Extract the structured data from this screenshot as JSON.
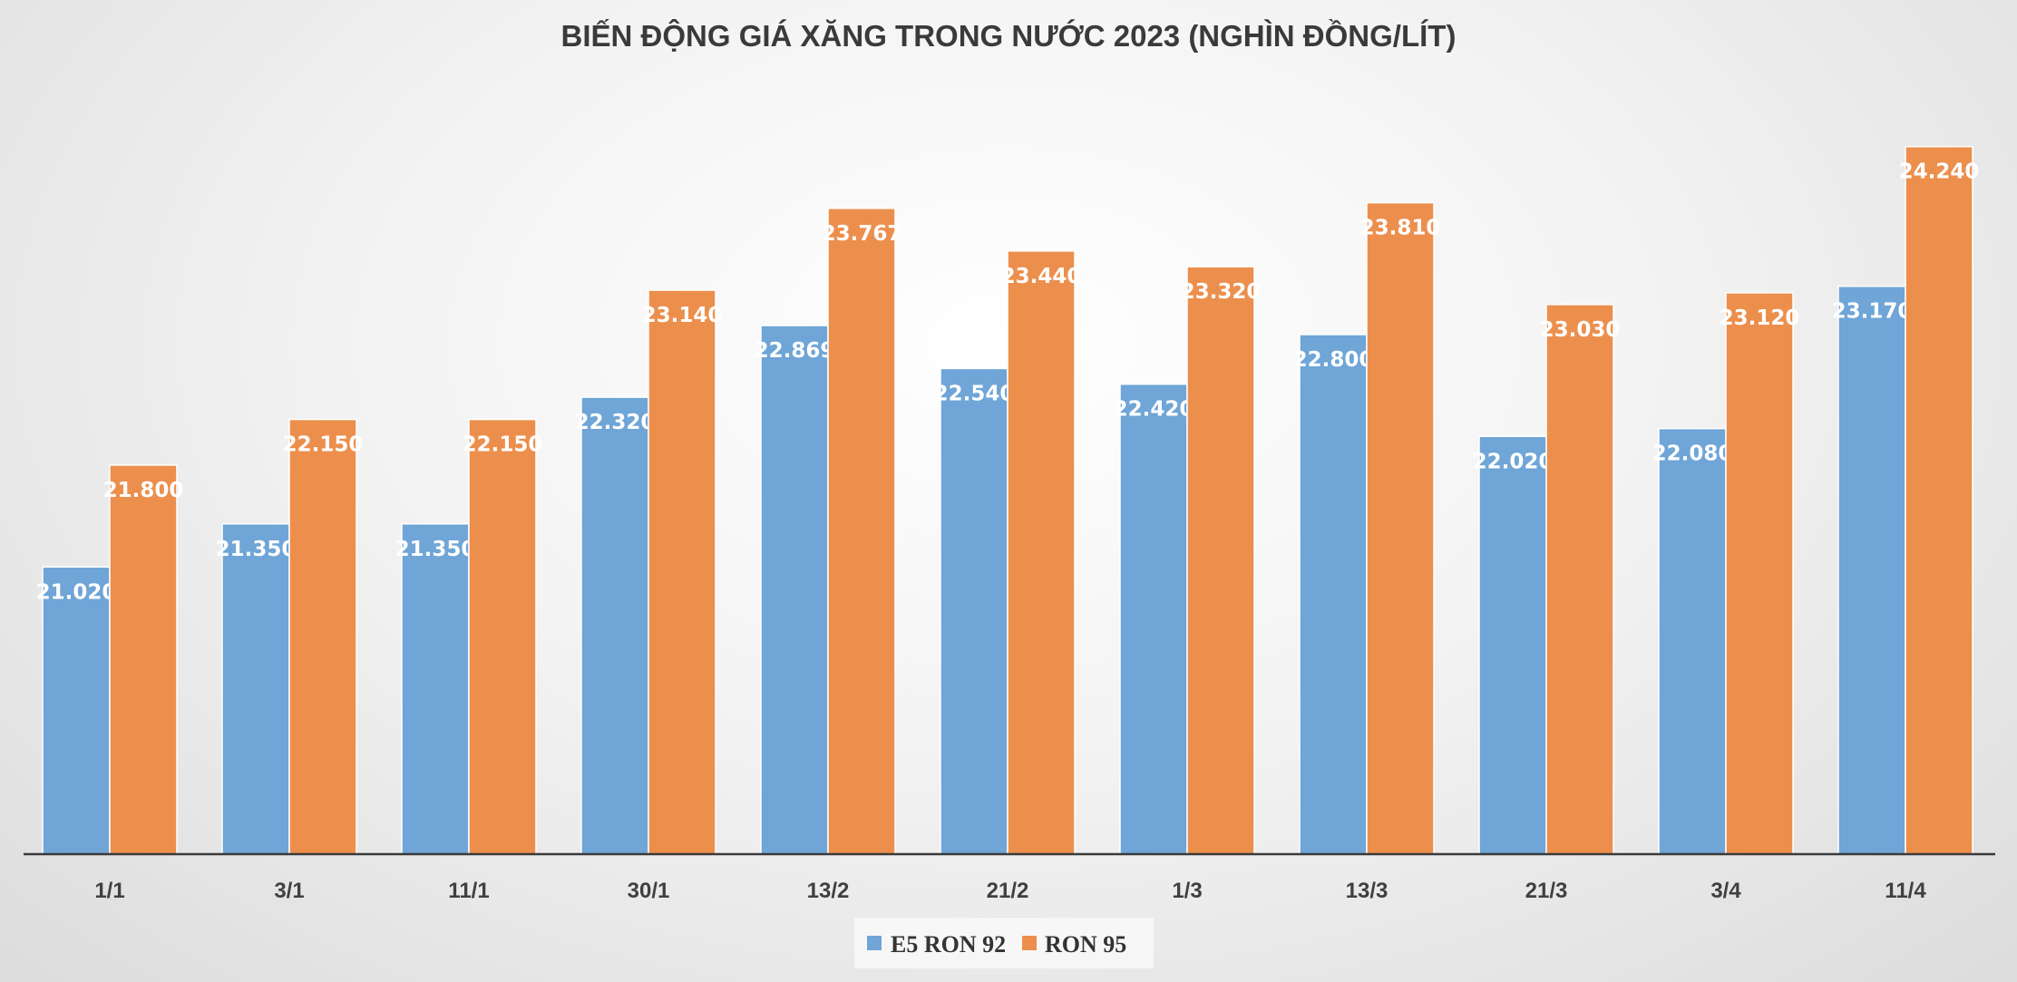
{
  "chart_data": {
    "type": "bar",
    "title": "BIẾN ĐỘNG GIÁ XĂNG TRONG NƯỚC 2023 (NGHÌN ĐỒNG/LÍT)",
    "categories": [
      "1/1",
      "3/1",
      "11/1",
      "30/1",
      "13/2",
      "21/2",
      "1/3",
      "13/3",
      "21/3",
      "3/4",
      "11/4"
    ],
    "series": [
      {
        "name": "E5 RON 92",
        "color": "#6FA5D7",
        "values": [
          21.02,
          21.35,
          21.35,
          22.32,
          22.869,
          22.54,
          22.42,
          22.8,
          22.02,
          22.08,
          23.17
        ],
        "labels": [
          "21.020",
          "21.350",
          "21.350",
          "22.320",
          "22.869",
          "22.540",
          "22.420",
          "22.800",
          "22.020",
          "22.080",
          "23.170"
        ]
      },
      {
        "name": "RON 95",
        "color": "#EC8F4D",
        "values": [
          21.8,
          22.15,
          22.15,
          23.14,
          23.767,
          23.44,
          23.32,
          23.81,
          23.03,
          23.12,
          24.24
        ],
        "labels": [
          "21.800",
          "22.150",
          "22.150",
          "23.140",
          "23.767",
          "23.440",
          "23.320",
          "23.810",
          "23.030",
          "23.120",
          "24.240"
        ]
      }
    ],
    "xlabel": "",
    "ylabel": "",
    "ylim": [
      18.82,
      24.46
    ],
    "grid": false,
    "legend_position": "bottom"
  }
}
